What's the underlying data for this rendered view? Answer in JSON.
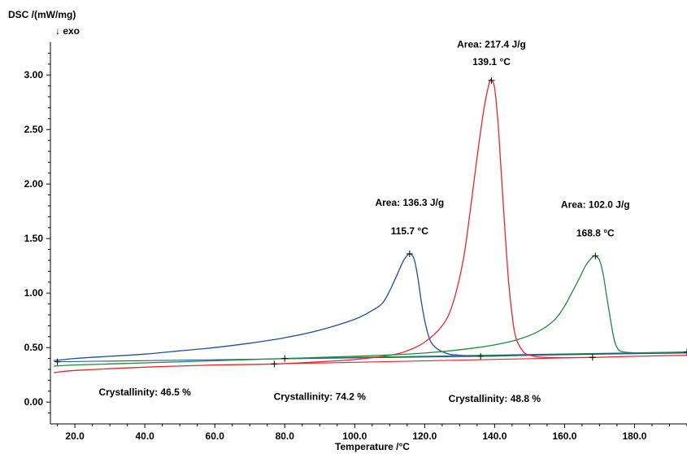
{
  "chart_data": {
    "type": "line",
    "ylabel": "DSC /(mW/mg)",
    "ylabel_sub": "↓ exo",
    "xlabel": "Temperature /°C",
    "xlim": [
      13.0,
      195.0
    ],
    "ylim": [
      -0.2,
      3.3
    ],
    "x_ticks": [
      "20.0",
      "40.0",
      "60.0",
      "80.0",
      "100.0",
      "120.0",
      "140.0",
      "160.0",
      "180.0"
    ],
    "x_tick_values": [
      20,
      40,
      60,
      80,
      100,
      120,
      140,
      160,
      180
    ],
    "y_ticks": [
      "0.00",
      "0.50",
      "1.00",
      "1.50",
      "2.00",
      "2.50",
      "3.00"
    ],
    "y_tick_values": [
      0,
      0.5,
      1.0,
      1.5,
      2.0,
      2.5,
      3.0
    ],
    "grid": false,
    "colors": {
      "blue": "#1f4e9e",
      "red": "#e8262a",
      "green": "#1e8a3c"
    },
    "series": [
      {
        "color": "#1f4e9e",
        "peak": [
          115.7,
          1.36
        ],
        "baseline_points": [
          [
            15.0,
            0.37
          ],
          [
            136.0,
            0.42
          ]
        ],
        "points": [
          [
            14,
            0.38
          ],
          [
            20,
            0.4
          ],
          [
            30,
            0.42
          ],
          [
            40,
            0.44
          ],
          [
            50,
            0.47
          ],
          [
            60,
            0.5
          ],
          [
            70,
            0.54
          ],
          [
            80,
            0.59
          ],
          [
            90,
            0.66
          ],
          [
            100,
            0.76
          ],
          [
            105,
            0.84
          ],
          [
            108,
            0.91
          ],
          [
            110,
            1.02
          ],
          [
            112,
            1.16
          ],
          [
            114,
            1.3
          ],
          [
            115.7,
            1.36
          ],
          [
            117,
            1.31
          ],
          [
            118,
            1.15
          ],
          [
            119,
            0.93
          ],
          [
            120,
            0.75
          ],
          [
            121,
            0.62
          ],
          [
            122,
            0.54
          ],
          [
            124,
            0.48
          ],
          [
            127,
            0.44
          ],
          [
            130,
            0.43
          ],
          [
            136,
            0.42
          ],
          [
            150,
            0.43
          ],
          [
            170,
            0.44
          ],
          [
            195,
            0.45
          ]
        ]
      },
      {
        "color": "#e8262a",
        "peak": [
          139.1,
          2.95
        ],
        "baseline_points": [
          [
            77.0,
            0.35
          ],
          [
            168.0,
            0.41
          ]
        ],
        "points": [
          [
            14,
            0.27
          ],
          [
            20,
            0.29
          ],
          [
            40,
            0.32
          ],
          [
            60,
            0.34
          ],
          [
            77,
            0.35
          ],
          [
            90,
            0.37
          ],
          [
            100,
            0.39
          ],
          [
            110,
            0.43
          ],
          [
            115,
            0.47
          ],
          [
            120,
            0.55
          ],
          [
            125,
            0.7
          ],
          [
            128,
            0.9
          ],
          [
            131,
            1.3
          ],
          [
            133,
            1.75
          ],
          [
            135,
            2.25
          ],
          [
            137,
            2.7
          ],
          [
            138.5,
            2.93
          ],
          [
            139.1,
            2.95
          ],
          [
            140,
            2.88
          ],
          [
            141,
            2.55
          ],
          [
            142,
            2.05
          ],
          [
            143,
            1.55
          ],
          [
            144,
            1.1
          ],
          [
            145,
            0.8
          ],
          [
            146,
            0.6
          ],
          [
            148,
            0.47
          ],
          [
            150,
            0.43
          ],
          [
            155,
            0.41
          ],
          [
            168,
            0.41
          ],
          [
            180,
            0.42
          ],
          [
            195,
            0.43
          ]
        ]
      },
      {
        "color": "#1e8a3c",
        "peak": [
          168.8,
          1.34
        ],
        "baseline_points": [
          [
            80.0,
            0.4
          ],
          [
            195.0,
            0.46
          ]
        ],
        "points": [
          [
            14,
            0.33
          ],
          [
            20,
            0.34
          ],
          [
            40,
            0.36
          ],
          [
            60,
            0.38
          ],
          [
            80,
            0.4
          ],
          [
            100,
            0.42
          ],
          [
            120,
            0.45
          ],
          [
            135,
            0.5
          ],
          [
            145,
            0.56
          ],
          [
            152,
            0.64
          ],
          [
            157,
            0.75
          ],
          [
            160,
            0.88
          ],
          [
            162,
            1.0
          ],
          [
            164,
            1.12
          ],
          [
            166,
            1.25
          ],
          [
            168,
            1.33
          ],
          [
            168.8,
            1.34
          ],
          [
            170,
            1.3
          ],
          [
            171,
            1.18
          ],
          [
            172,
            0.98
          ],
          [
            173,
            0.78
          ],
          [
            174,
            0.6
          ],
          [
            175,
            0.5
          ],
          [
            177,
            0.46
          ],
          [
            185,
            0.45
          ],
          [
            195,
            0.46
          ]
        ]
      }
    ],
    "annotations": [
      {
        "text": "Area: 217.4 J/g",
        "color": "#e8262a",
        "x": 139.1,
        "y": 3.25
      },
      {
        "text": "139.1 °C",
        "color": "#e8262a",
        "x": 139.1,
        "y": 3.09
      },
      {
        "text": "Area: 136.3 J/g",
        "color": "#1f4e9e",
        "x": 115.7,
        "y": 1.8
      },
      {
        "text": "115.7 °C",
        "color": "#1f4e9e",
        "x": 115.7,
        "y": 1.54
      },
      {
        "text": "Area: 102.0 J/g",
        "color": "#1e8a3c",
        "x": 168.8,
        "y": 1.78
      },
      {
        "text": "168.8 °C",
        "color": "#1e8a3c",
        "x": 168.8,
        "y": 1.52
      },
      {
        "text": "Crystallinity: 46.5 %",
        "color": "#1f4e9e",
        "x": 40.0,
        "y": 0.06
      },
      {
        "text": "Crystallinity: 74.2 %",
        "color": "#e8262a",
        "x": 90.0,
        "y": 0.02
      },
      {
        "text": "Crystallinity: 48.8 %",
        "color": "#1e8a3c",
        "x": 140.0,
        "y": 0.0
      }
    ]
  }
}
